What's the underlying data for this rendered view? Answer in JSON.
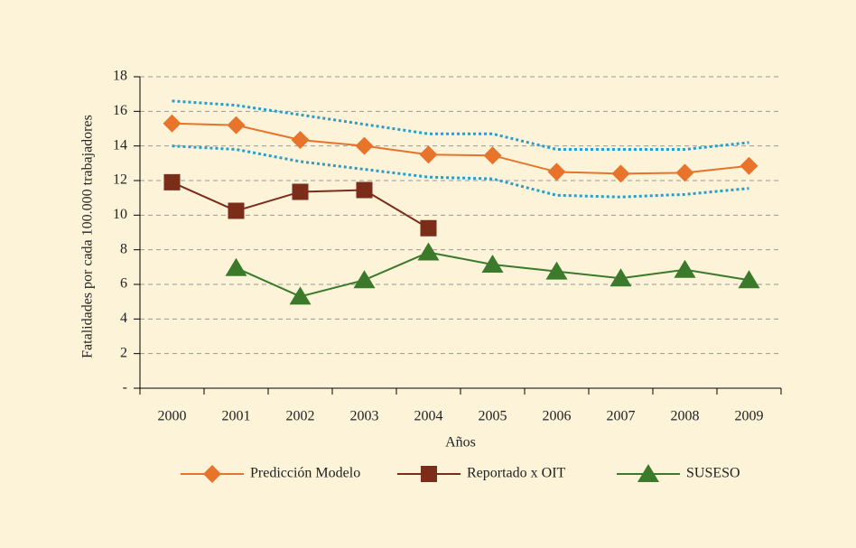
{
  "chart_data": {
    "type": "line",
    "categories": [
      "2000",
      "2001",
      "2002",
      "2003",
      "2004",
      "2005",
      "2006",
      "2007",
      "2008",
      "2009"
    ],
    "series": [
      {
        "color": "#2a9ec8",
        "dashed": true,
        "values": [
          16.6,
          16.35,
          15.8,
          15.25,
          14.7,
          14.7,
          13.8,
          13.8,
          13.8,
          14.2
        ]
      },
      {
        "color": "#2a9ec8",
        "dashed": true,
        "values": [
          14.0,
          13.8,
          13.1,
          12.65,
          12.2,
          12.1,
          11.15,
          11.05,
          11.2,
          11.55
        ]
      },
      {
        "name": "Predicción Modelo",
        "color": "#e8732a",
        "marker": "diamond",
        "values": [
          15.3,
          15.2,
          14.35,
          14.0,
          13.5,
          13.45,
          12.5,
          12.4,
          12.45,
          12.85
        ]
      },
      {
        "name": "Reportado x OIT",
        "color": "#7b2d1a",
        "marker": "square",
        "values": [
          11.9,
          10.25,
          11.35,
          11.45,
          9.25,
          null,
          null,
          null,
          null,
          null
        ]
      },
      {
        "name": "SUSESO",
        "color": "#3a7a2a",
        "marker": "triangle",
        "values": [
          null,
          6.95,
          5.3,
          6.25,
          7.85,
          7.15,
          6.75,
          6.35,
          6.85,
          6.25
        ]
      }
    ],
    "ylabel": "Fatalidades por cada 100.000 trabajadores",
    "xlabel": "Años",
    "ylim": [
      0,
      18
    ],
    "yticks": [
      {
        "value": 0,
        "label": "-"
      },
      2,
      4,
      6,
      8,
      10,
      12,
      14,
      16,
      18
    ],
    "grid": true,
    "legend": "bottom"
  }
}
